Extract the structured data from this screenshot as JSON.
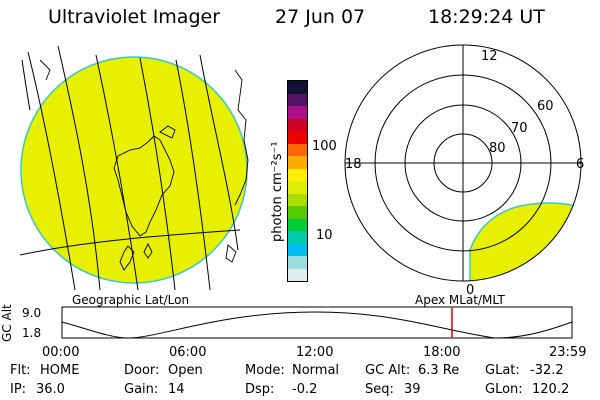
{
  "header": {
    "instrument": "Ultraviolet Imager",
    "date": "27 Jun 07",
    "time": "18:29:24 UT"
  },
  "colorbar": {
    "unit_label": "photon cm⁻²s⁻¹",
    "ticks": [
      "100",
      "10"
    ],
    "colors": [
      "#111133",
      "#551166",
      "#aa1188",
      "#cc0022",
      "#ee0000",
      "#ff6600",
      "#ffaa00",
      "#ffee00",
      "#ddee00",
      "#aadd00",
      "#55cc00",
      "#00cc33",
      "#00ccaa",
      "#00bbee",
      "#99dddd",
      "#ddeeee"
    ]
  },
  "geo_map": {
    "caption": "Geographic Lat/Lon",
    "fill_color": "#e6f000"
  },
  "polar_plot": {
    "caption": "Apex MLat/MLT",
    "mlt_labels": [
      "12",
      "18",
      "6",
      "0"
    ],
    "lat_labels": [
      "60",
      "70",
      "80"
    ],
    "fill_color": "#e6f000"
  },
  "timeline": {
    "axis_label": "GC Alt",
    "y_ticks": [
      "9.0",
      "1.8"
    ],
    "x_ticks": [
      "00:00",
      "06:00",
      "12:00",
      "18:00",
      "23:59"
    ],
    "current_time_color": "#dd0000"
  },
  "status": {
    "flt_label": "Flt:",
    "flt_value": "HOME",
    "ip_label": "IP:",
    "ip_value": "36.0",
    "door_label": "Door:",
    "door_value": "Open",
    "gain_label": "Gain:",
    "gain_value": "14",
    "mode_label": "Mode:",
    "mode_value": "Normal",
    "dsp_label": "Dsp:",
    "dsp_value": "-0.2",
    "gcalt_label": "GC Alt:",
    "gcalt_value": "6.3 Re",
    "seq_label": "Seq:",
    "seq_value": "39",
    "glat_label": "GLat:",
    "glat_value": "-32.2",
    "glon_label": "GLon:",
    "glon_value": "120.2"
  }
}
